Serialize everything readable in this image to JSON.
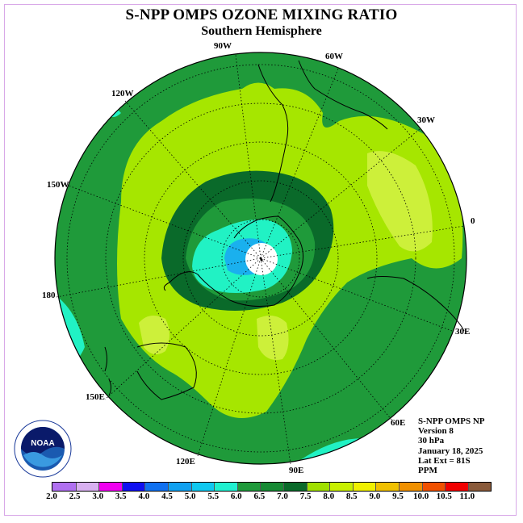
{
  "header": {
    "title": "S-NPP OMPS OZONE MIXING RATIO",
    "subtitle": "Southern Hemisphere"
  },
  "map": {
    "projection": "polar stereographic (south pole)",
    "longitude_labels": [
      "90W",
      "60W",
      "30W",
      "0",
      "30E",
      "60E",
      "90E",
      "120E",
      "150E",
      "180",
      "150W",
      "120W"
    ],
    "region_colors": {
      "ocean_base": "#1f9a3a",
      "dark_ring": "#0a6a2a",
      "light_green": "#a6e600",
      "yellow_green": "#cdf03a",
      "cyan": "#21f2c4",
      "blue": "#1ab0ee",
      "pole_gap": "#ffffff"
    }
  },
  "info": {
    "lines": [
      "S-NPP OMPS NP",
      "Version 8",
      "30 hPa",
      "January 18, 2025",
      "Lat Ext = 81S",
      "PPM"
    ]
  },
  "colorbar": {
    "ticks": [
      "2.0",
      "2.5",
      "3.0",
      "3.5",
      "4.0",
      "4.5",
      "5.0",
      "5.5",
      "6.0",
      "6.5",
      "7.0",
      "7.5",
      "8.0",
      "8.5",
      "9.0",
      "9.5",
      "10.0",
      "10.5",
      "11.0"
    ],
    "colors": [
      "#b070f0",
      "#d8b0f0",
      "#f000f0",
      "#1010f0",
      "#1070f0",
      "#10a0f0",
      "#10c8f0",
      "#20f0d0",
      "#1f9a3a",
      "#178a34",
      "#0a6a2a",
      "#a0e000",
      "#c8f000",
      "#f0f000",
      "#f0c000",
      "#f09000",
      "#f05000",
      "#f00000",
      "#8a5a3a"
    ]
  },
  "logo": {
    "text": "NOAA"
  }
}
